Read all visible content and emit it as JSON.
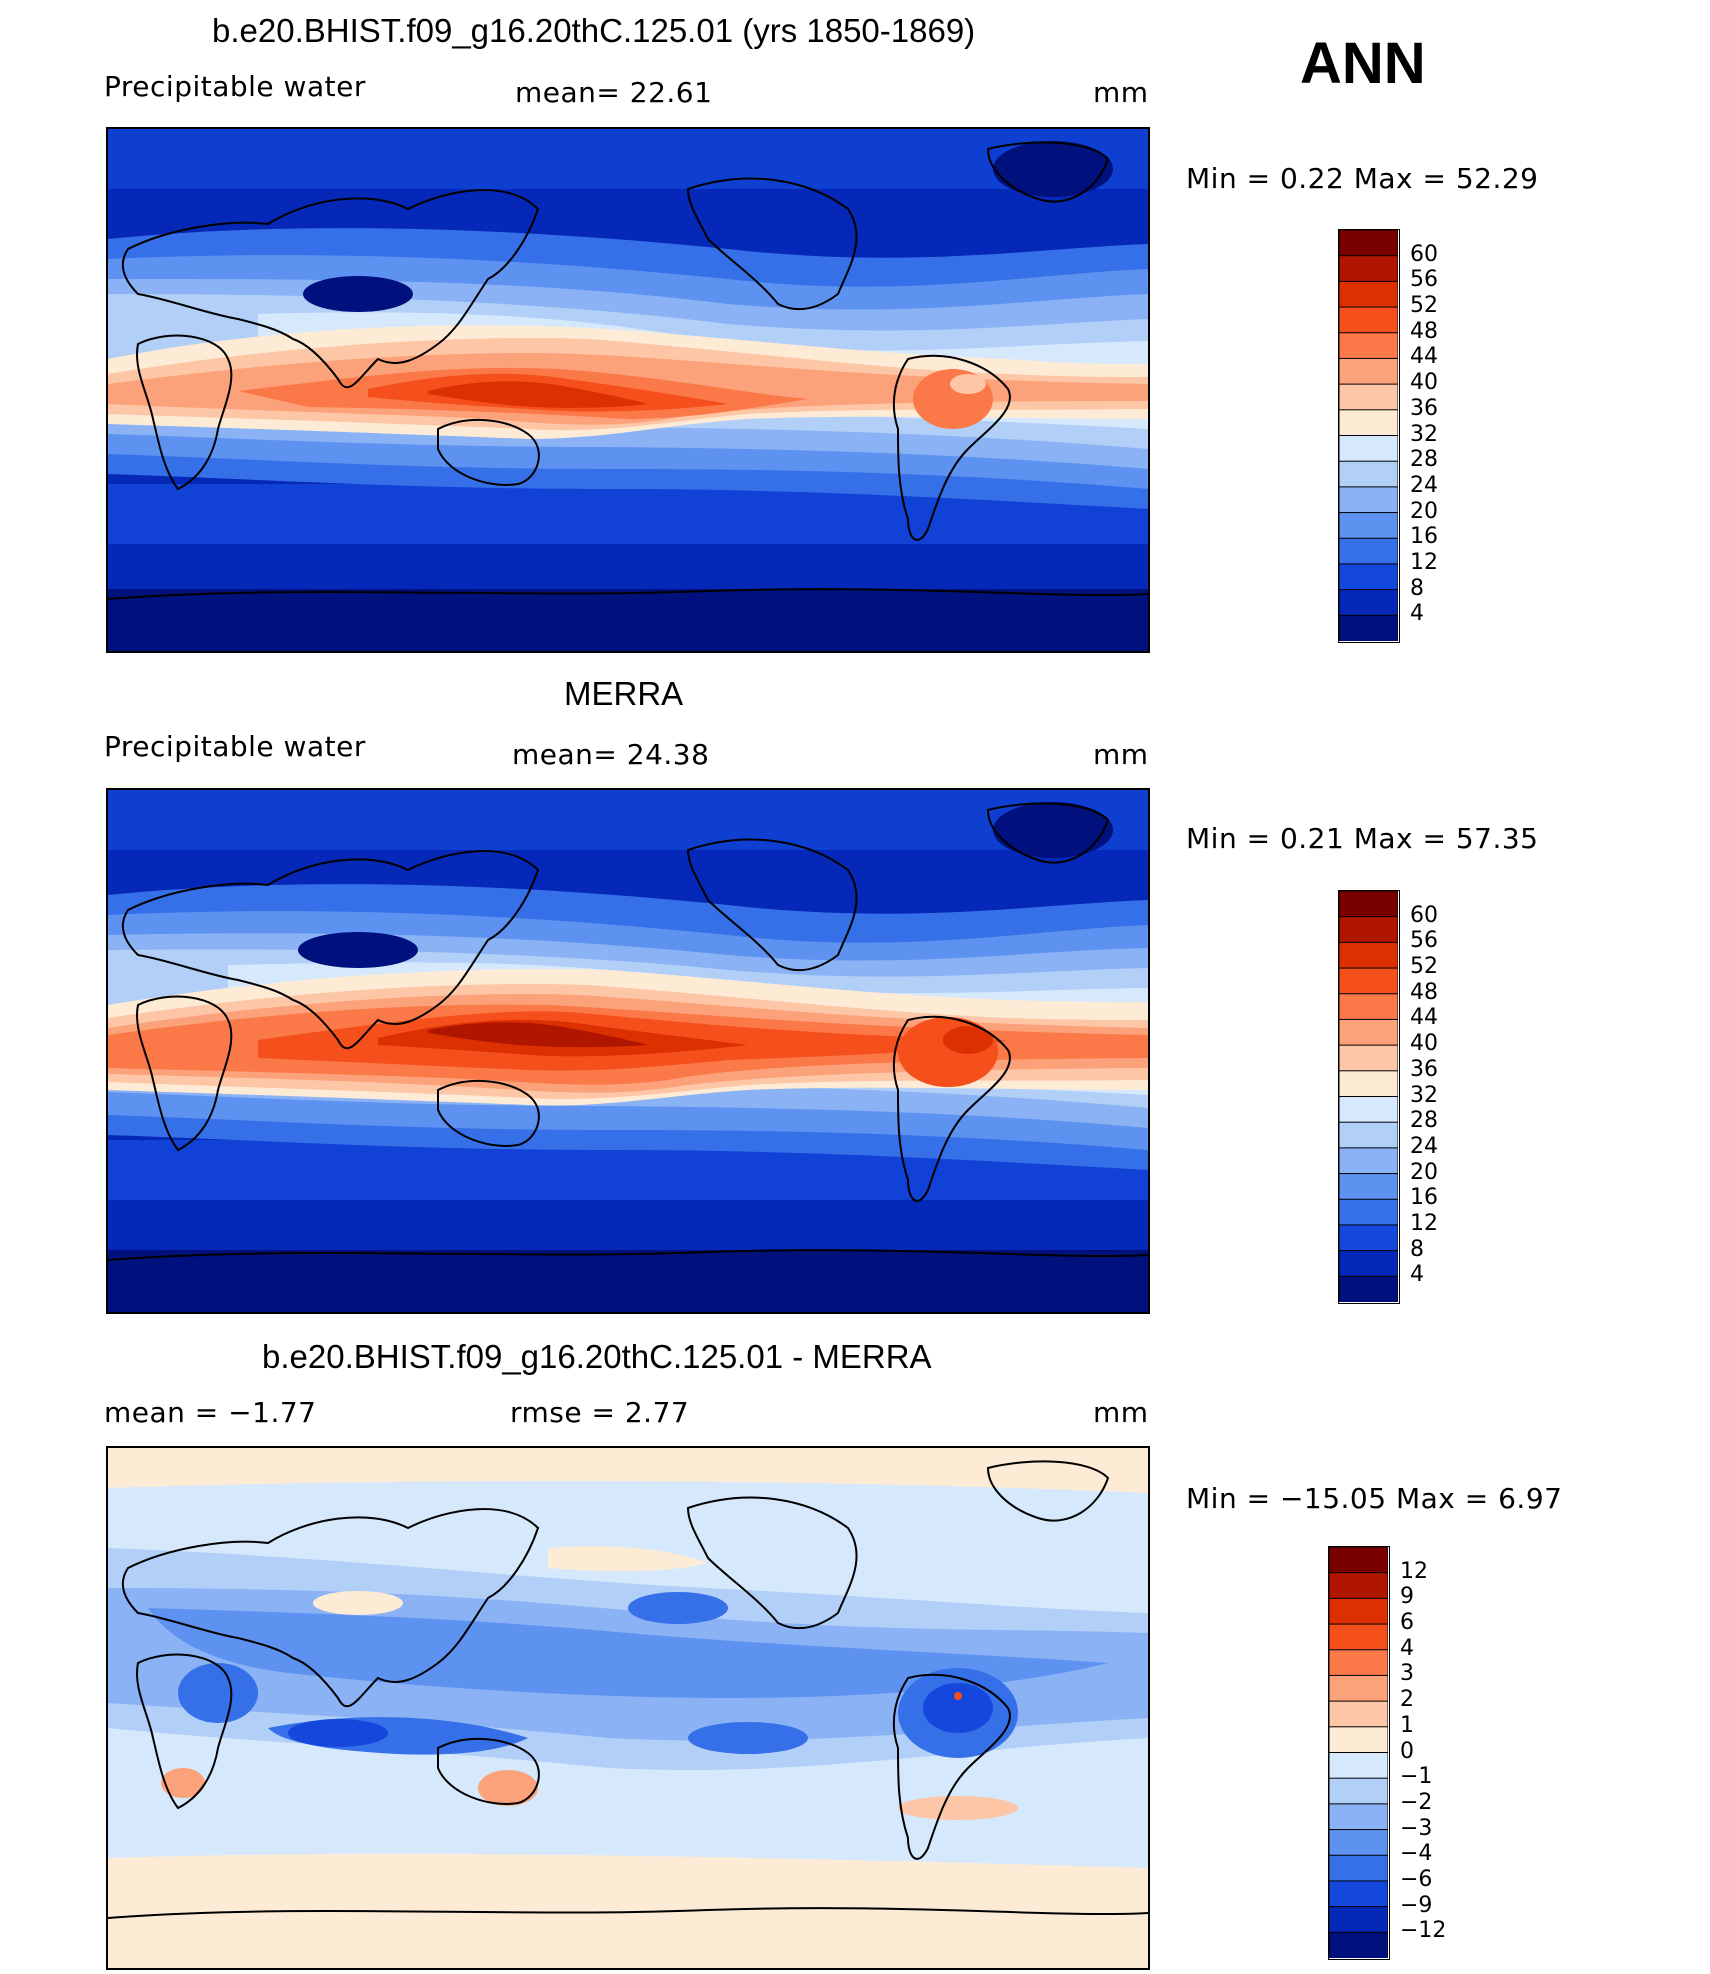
{
  "season": "ANN",
  "panels": [
    {
      "id": "model",
      "title": "b.e20.BHIST.f09_g16.20thC.125.01 (yrs 1850-1869)",
      "left_label": "Precipitable  water",
      "center_label": "mean=   22.61",
      "units": "mm",
      "minmax": "Min  =     0.22  Max  =    52.29",
      "colorbar": {
        "ticks": [
          "60",
          "56",
          "52",
          "48",
          "44",
          "40",
          "36",
          "32",
          "28",
          "24",
          "20",
          "16",
          "12",
          "8",
          "4"
        ],
        "colors": [
          "#7a0000",
          "#b01500",
          "#dd3000",
          "#f5501c",
          "#fb7848",
          "#fca27a",
          "#fdc6a6",
          "#fdebd6",
          "#d6e8fb",
          "#b2cff8",
          "#8ab2f5",
          "#5d92f0",
          "#3570e8",
          "#1448dc",
          "#0528b8",
          "#00107d"
        ]
      }
    },
    {
      "id": "obs",
      "title": "MERRA",
      "left_label": "Precipitable  water",
      "center_label": "mean=   24.38",
      "units": "mm",
      "minmax": "Min  =     0.21  Max  =    57.35",
      "colorbar": {
        "ticks": [
          "60",
          "56",
          "52",
          "48",
          "44",
          "40",
          "36",
          "32",
          "28",
          "24",
          "20",
          "16",
          "12",
          "8",
          "4"
        ],
        "colors": [
          "#7a0000",
          "#b01500",
          "#dd3000",
          "#f5501c",
          "#fb7848",
          "#fca27a",
          "#fdc6a6",
          "#fdebd6",
          "#d6e8fb",
          "#b2cff8",
          "#8ab2f5",
          "#5d92f0",
          "#3570e8",
          "#1448dc",
          "#0528b8",
          "#00107d"
        ]
      }
    },
    {
      "id": "diff",
      "title": "b.e20.BHIST.f09_g16.20thC.125.01 - MERRA",
      "left_label": "mean  =    −1.77",
      "center_label": "rmse  =     2.77",
      "units": "mm",
      "minmax": "Min  =  −15.05  Max  =      6.97",
      "colorbar": {
        "ticks": [
          "12",
          "9",
          "6",
          "4",
          "3",
          "2",
          "1",
          "0",
          "−1",
          "−2",
          "−3",
          "−4",
          "−6",
          "−9",
          "−12"
        ],
        "colors": [
          "#7a0000",
          "#b01500",
          "#dd3000",
          "#f5501c",
          "#fb7848",
          "#fca27a",
          "#fdc6a6",
          "#fdebd6",
          "#d6e8fb",
          "#b2cff8",
          "#8ab2f5",
          "#5d92f0",
          "#3570e8",
          "#1448dc",
          "#0528b8",
          "#00107d"
        ]
      }
    }
  ]
}
